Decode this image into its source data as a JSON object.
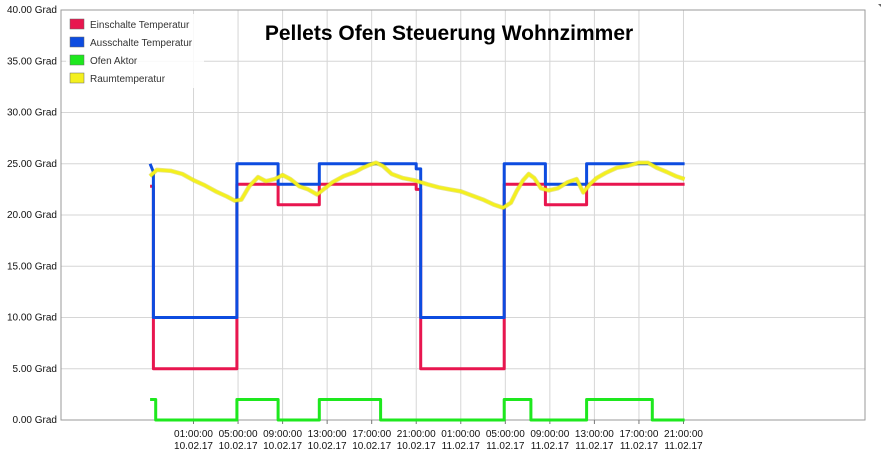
{
  "chart_data": {
    "type": "line",
    "title": "Pellets Ofen Steuerung Wohnzimmer",
    "xlabel": "",
    "ylabel": "",
    "ylim": [
      0,
      40
    ],
    "xlim": [
      -10.9,
      61.3
    ],
    "grid": true,
    "legend_position": "top-left",
    "y_ticks": [
      {
        "value": 0,
        "label": "0.00 Grad"
      },
      {
        "value": 5,
        "label": "5.00 Grad"
      },
      {
        "value": 10,
        "label": "10.00 Grad"
      },
      {
        "value": 15,
        "label": "15.00 Grad"
      },
      {
        "value": 20,
        "label": "20.00 Grad"
      },
      {
        "value": 25,
        "label": "25.00 Grad"
      },
      {
        "value": 30,
        "label": "30.00 Grad"
      },
      {
        "value": 35,
        "label": "35.00 Grad"
      },
      {
        "value": 40,
        "label": "40.00 Grad"
      }
    ],
    "x_ticks": [
      {
        "value": 1,
        "time": "01:00:00",
        "date": "10.02.17"
      },
      {
        "value": 5,
        "time": "05:00:00",
        "date": "10.02.17"
      },
      {
        "value": 9,
        "time": "09:00:00",
        "date": "10.02.17"
      },
      {
        "value": 13,
        "time": "13:00:00",
        "date": "10.02.17"
      },
      {
        "value": 17,
        "time": "17:00:00",
        "date": "10.02.17"
      },
      {
        "value": 21,
        "time": "21:00:00",
        "date": "10.02.17"
      },
      {
        "value": 25,
        "time": "01:00:00",
        "date": "11.02.17"
      },
      {
        "value": 29,
        "time": "05:00:00",
        "date": "11.02.17"
      },
      {
        "value": 33,
        "time": "09:00:00",
        "date": "11.02.17"
      },
      {
        "value": 37,
        "time": "13:00:00",
        "date": "11.02.17"
      },
      {
        "value": 41,
        "time": "17:00:00",
        "date": "11.02.17"
      },
      {
        "value": 45,
        "time": "21:00:00",
        "date": "11.02.17"
      }
    ],
    "series": [
      {
        "name": "Einschalte Temperatur",
        "color": "#e8164f",
        "points": [
          [
            -2.9,
            22.8
          ],
          [
            -2.6,
            22.8
          ],
          [
            -2.6,
            5
          ],
          [
            4.9,
            5
          ],
          [
            4.9,
            23
          ],
          [
            8.6,
            23
          ],
          [
            8.6,
            21
          ],
          [
            12.3,
            21
          ],
          [
            12.3,
            23
          ],
          [
            21.0,
            23
          ],
          [
            21.0,
            22.5
          ],
          [
            21.4,
            22.5
          ],
          [
            21.4,
            5
          ],
          [
            28.9,
            5
          ],
          [
            28.9,
            23
          ],
          [
            32.6,
            23
          ],
          [
            32.6,
            21
          ],
          [
            36.3,
            21
          ],
          [
            36.3,
            23
          ],
          [
            45.1,
            23
          ]
        ]
      },
      {
        "name": "Ausschalte Temperatur",
        "color": "#0d4ce0",
        "points": [
          [
            -2.9,
            25
          ],
          [
            -2.6,
            24.2
          ],
          [
            -2.6,
            10
          ],
          [
            4.9,
            10
          ],
          [
            4.9,
            25
          ],
          [
            8.6,
            25
          ],
          [
            8.6,
            23
          ],
          [
            12.3,
            23
          ],
          [
            12.3,
            25
          ],
          [
            21.0,
            25
          ],
          [
            21.0,
            24.5
          ],
          [
            21.4,
            24.5
          ],
          [
            21.4,
            10
          ],
          [
            28.9,
            10
          ],
          [
            28.9,
            25
          ],
          [
            32.6,
            25
          ],
          [
            32.6,
            23
          ],
          [
            36.3,
            23
          ],
          [
            36.3,
            25
          ],
          [
            45.1,
            25
          ]
        ]
      },
      {
        "name": "Ofen Aktor",
        "color": "#1ee81e",
        "points": [
          [
            -2.9,
            2
          ],
          [
            -2.4,
            2
          ],
          [
            -2.4,
            0
          ],
          [
            4.9,
            0
          ],
          [
            4.9,
            2
          ],
          [
            8.6,
            2
          ],
          [
            8.6,
            0
          ],
          [
            12.3,
            0
          ],
          [
            12.3,
            2
          ],
          [
            17.8,
            2
          ],
          [
            17.8,
            0
          ],
          [
            28.9,
            0
          ],
          [
            28.9,
            2
          ],
          [
            31.3,
            2
          ],
          [
            31.3,
            0
          ],
          [
            36.3,
            0
          ],
          [
            36.3,
            2
          ],
          [
            42.2,
            2
          ],
          [
            42.2,
            0
          ],
          [
            45.1,
            0
          ]
        ]
      },
      {
        "name": "Raumtemperatur",
        "color": "#f4f01e",
        "points": [
          [
            -2.9,
            23.8
          ],
          [
            -2.3,
            24.4
          ],
          [
            -1,
            24.3
          ],
          [
            0,
            24.0
          ],
          [
            1,
            23.4
          ],
          [
            2,
            22.9
          ],
          [
            3,
            22.3
          ],
          [
            4,
            21.8
          ],
          [
            4.7,
            21.4
          ],
          [
            5.3,
            21.5
          ],
          [
            6,
            22.8
          ],
          [
            6.8,
            23.7
          ],
          [
            7.5,
            23.3
          ],
          [
            8.3,
            23.5
          ],
          [
            9,
            23.9
          ],
          [
            9.7,
            23.5
          ],
          [
            10.5,
            22.8
          ],
          [
            11.3,
            22.5
          ],
          [
            12.1,
            22.0
          ],
          [
            12.8,
            22.6
          ],
          [
            13.5,
            23.2
          ],
          [
            14.5,
            23.8
          ],
          [
            15.5,
            24.2
          ],
          [
            16.2,
            24.6
          ],
          [
            16.8,
            24.9
          ],
          [
            17.4,
            25.1
          ],
          [
            18.0,
            24.8
          ],
          [
            18.8,
            24.0
          ],
          [
            19.8,
            23.6
          ],
          [
            20.8,
            23.4
          ],
          [
            22,
            23.0
          ],
          [
            23,
            22.7
          ],
          [
            24,
            22.5
          ],
          [
            25,
            22.3
          ],
          [
            26,
            21.9
          ],
          [
            27,
            21.5
          ],
          [
            28,
            21.0
          ],
          [
            28.8,
            20.7
          ],
          [
            29.5,
            21.2
          ],
          [
            30,
            22.3
          ],
          [
            30.6,
            23.4
          ],
          [
            31.1,
            24.0
          ],
          [
            31.6,
            23.6
          ],
          [
            32.2,
            22.6
          ],
          [
            32.9,
            22.4
          ],
          [
            33.7,
            22.6
          ],
          [
            34.6,
            23.2
          ],
          [
            35.4,
            23.5
          ],
          [
            36.0,
            22.2
          ],
          [
            36.6,
            23.0
          ],
          [
            37.2,
            23.6
          ],
          [
            38.0,
            24.1
          ],
          [
            39.0,
            24.6
          ],
          [
            40.0,
            24.8
          ],
          [
            41.0,
            25.1
          ],
          [
            41.8,
            25.1
          ],
          [
            42.6,
            24.6
          ],
          [
            43.5,
            24.2
          ],
          [
            44.3,
            23.8
          ],
          [
            45.1,
            23.5
          ]
        ]
      }
    ]
  }
}
